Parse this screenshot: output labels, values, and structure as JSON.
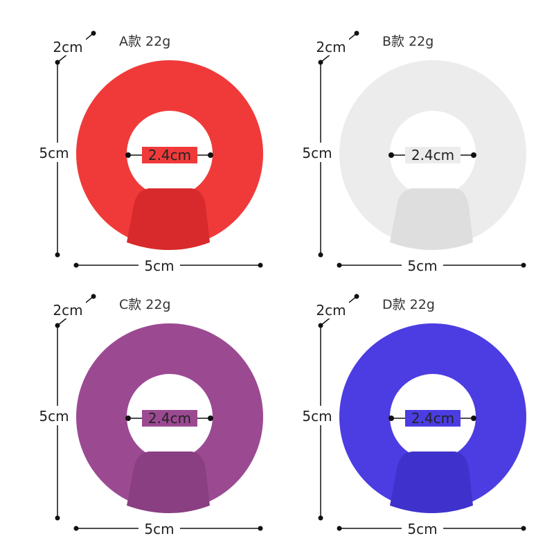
{
  "variants": [
    {
      "title": "A款  22g",
      "thickness": "2cm",
      "height": "5cm",
      "width": "5cm",
      "inner": "2.4cm",
      "color": "#f03a3a",
      "shade": "#d82a2c"
    },
    {
      "title": "B款  22g",
      "thickness": "2cm",
      "height": "5cm",
      "width": "5cm",
      "inner": "2.4cm",
      "color": "#ececec",
      "shade": "#dedede"
    },
    {
      "title": "C款  22g",
      "thickness": "2cm",
      "height": "5cm",
      "width": "5cm",
      "inner": "2.4cm",
      "color": "#9b4a92",
      "shade": "#8a3f82"
    },
    {
      "title": "D款  22g",
      "thickness": "2cm",
      "height": "5cm",
      "width": "5cm",
      "inner": "2.4cm",
      "color": "#4b3de2",
      "shade": "#3f32cc"
    }
  ]
}
